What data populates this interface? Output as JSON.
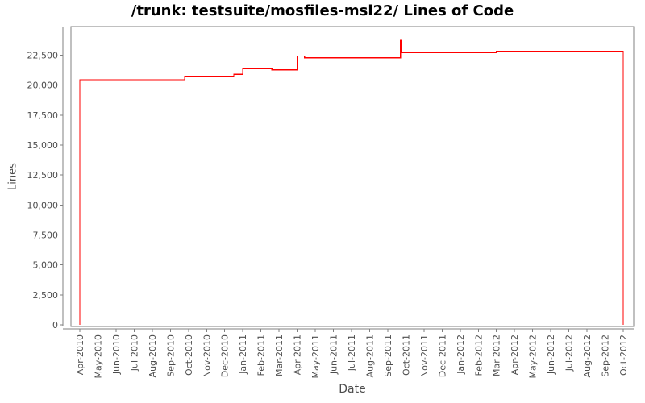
{
  "page": {
    "background": "#ffffff"
  },
  "chart_data": {
    "type": "line",
    "line_style": "step",
    "title": "/trunk: testsuite/mosfiles-msl22/ Lines of Code",
    "xlabel": "Date",
    "ylabel": "Lines",
    "line_color": "#ff0000",
    "axis_color": "#808080",
    "tick_label_color": "#4d4d4d",
    "grid": false,
    "legend": "none",
    "ylim": [
      0,
      24900
    ],
    "y_ticks": [
      {
        "value": 0,
        "label": "0"
      },
      {
        "value": 2500,
        "label": "2,500"
      },
      {
        "value": 5000,
        "label": "5,000"
      },
      {
        "value": 7500,
        "label": "7,500"
      },
      {
        "value": 10000,
        "label": "10,000"
      },
      {
        "value": 12500,
        "label": "12,500"
      },
      {
        "value": 15000,
        "label": "15,000"
      },
      {
        "value": 17500,
        "label": "17,500"
      },
      {
        "value": 20000,
        "label": "20,000"
      },
      {
        "value": 22500,
        "label": "22,500"
      }
    ],
    "x_tick_labels": [
      "Apr-2010",
      "May-2010",
      "Jun-2010",
      "Jul-2010",
      "Aug-2010",
      "Sep-2010",
      "Oct-2010",
      "Nov-2010",
      "Dec-2010",
      "Jan-2011",
      "Feb-2011",
      "Mar-2011",
      "Apr-2011",
      "May-2011",
      "Jun-2011",
      "Jul-2011",
      "Aug-2011",
      "Sep-2011",
      "Oct-2011",
      "Nov-2011",
      "Dec-2011",
      "Jan-2012",
      "Feb-2012",
      "Mar-2012",
      "Apr-2012",
      "May-2012",
      "Jun-2012",
      "Jul-2012",
      "Aug-2012",
      "Sep-2012",
      "Oct-2012"
    ],
    "points_note": "Step series: x = months after Apr-2010; value holds from that date until the next point. Line rises from 0 at Apr-2010 and drops back to 0 at Oct-2012.",
    "points": [
      {
        "x": 0,
        "date": "Apr-2010",
        "value": 20450
      },
      {
        "x": 5.8,
        "date": "late Sep-2010",
        "value": 20750
      },
      {
        "x": 8.5,
        "date": "mid Dec-2010",
        "value": 20900
      },
      {
        "x": 9.0,
        "date": "Jan-2011",
        "value": 21430
      },
      {
        "x": 10.6,
        "date": "mid Feb-2011",
        "value": 21270
      },
      {
        "x": 12.0,
        "date": "Apr-2011",
        "value": 22440
      },
      {
        "x": 12.4,
        "date": "mid Apr-2011",
        "value": 22280
      },
      {
        "x": 17.7,
        "date": "Sep-2011 (spike)",
        "value": 23740
      },
      {
        "x": 17.75,
        "date": "Sep-2011",
        "value": 22730
      },
      {
        "x": 23.0,
        "date": "Mar-2012",
        "value": 22820
      },
      {
        "x": 30.0,
        "date": "Oct-2012",
        "value": 0
      }
    ]
  }
}
